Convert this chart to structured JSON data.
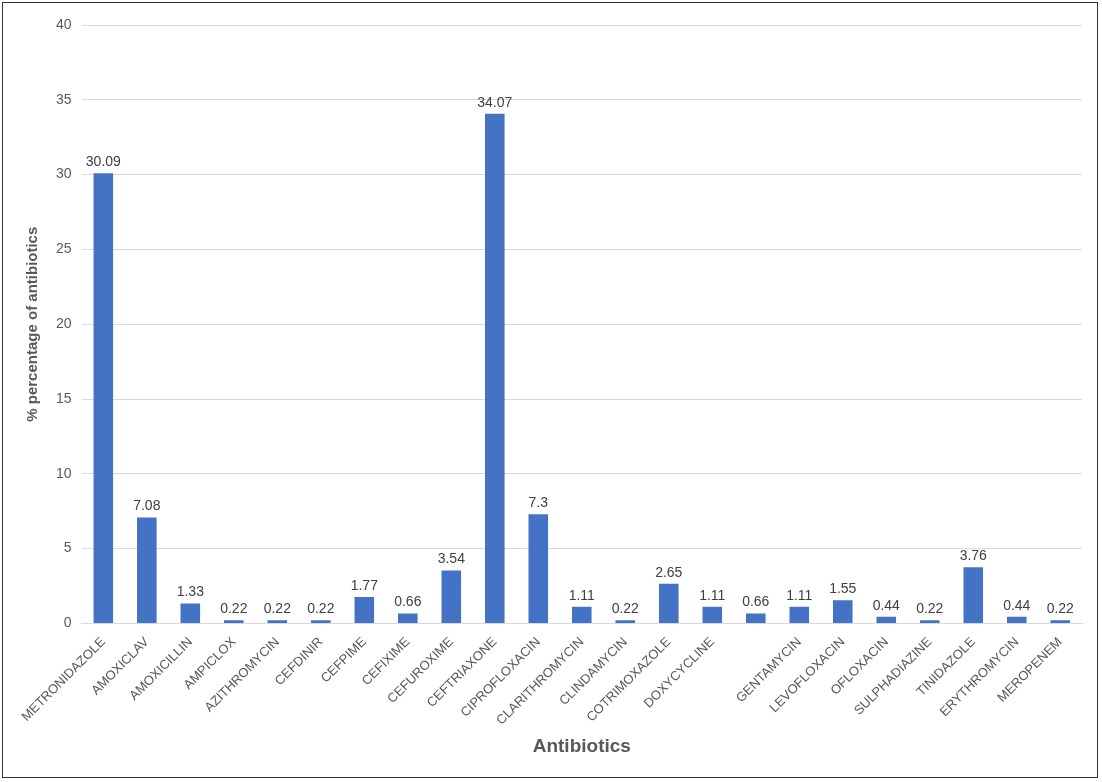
{
  "chart_data": {
    "type": "bar",
    "xlabel": "Antibiotics",
    "ylabel": "% percentage of antibiotics",
    "categories": [
      "METRONIDAZOLE",
      "AMOXICLAV",
      "AMOXICILLIN",
      "AMPICLOX",
      "AZITHROMYCIN",
      "CEFDINIR",
      "CEFPIME",
      "CEFIXIME",
      "CEFUROXIME",
      "CEFTRIAXONE",
      "CIPROFLOXACIN",
      "CLARITHROMYCIN",
      "CLINDAMYCIN",
      "COTRIMOXAZOLE",
      "DOXYCYCLINE",
      null,
      "GENTAMYCIN",
      "LEVOFLOXACIN",
      "OFLOXACIN",
      "SULPHADIAZINE",
      "TINIDAZOLE",
      "ERYTHROMYCIN",
      "MEROPENEM"
    ],
    "values": [
      30.09,
      7.08,
      1.33,
      0.22,
      0.22,
      0.22,
      1.77,
      0.66,
      3.54,
      34.07,
      7.3,
      1.11,
      0.22,
      2.65,
      1.11,
      0.66,
      1.11,
      1.55,
      0.44,
      0.22,
      3.76,
      0.44,
      0.22
    ],
    "color": "#4472c4",
    "ylim": [
      0,
      40
    ],
    "yticks": [
      0,
      5,
      10,
      15,
      20,
      25,
      30,
      35,
      40
    ],
    "grid": "y",
    "data_labels": true
  }
}
